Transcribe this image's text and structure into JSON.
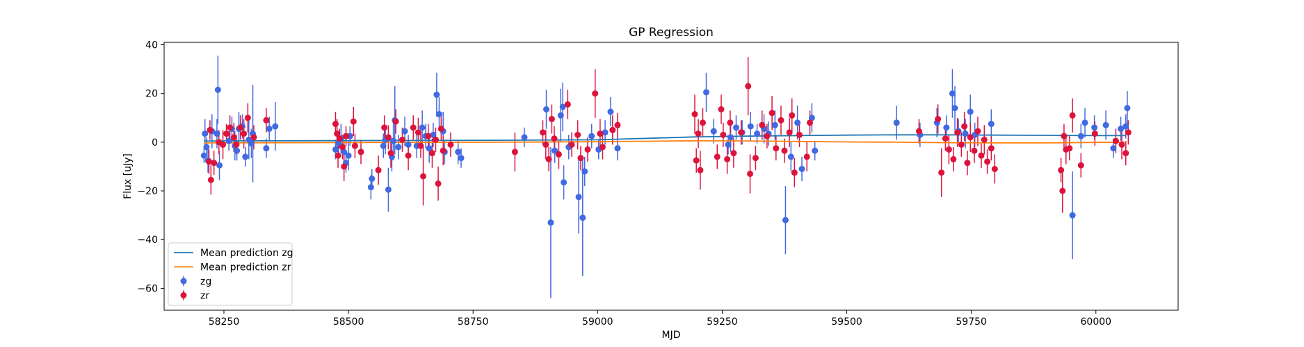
{
  "chart_data": {
    "type": "scatter",
    "title": "GP Regression",
    "xlabel": "MJD",
    "ylabel": "Flux [uJy]",
    "xlim": [
      58130,
      60165
    ],
    "ylim": [
      -69,
      41
    ],
    "xticks": [
      58250,
      58500,
      58750,
      59000,
      59250,
      59500,
      59750,
      60000
    ],
    "yticks": [
      -60,
      -40,
      -20,
      0,
      20,
      40
    ],
    "grid": false,
    "legend_position": "lower-left",
    "lines": [
      {
        "name": "Mean prediction zg",
        "color": "#1f77b4",
        "x": [
          58210,
          58400,
          58600,
          58800,
          59000,
          59100,
          59200,
          59300,
          59400,
          59500,
          59600,
          59700,
          59800,
          59900,
          60000,
          60060
        ],
        "y": [
          0.5,
          0.6,
          0.7,
          0.8,
          1.0,
          1.6,
          2.2,
          2.5,
          2.7,
          2.9,
          3.0,
          3.0,
          2.9,
          2.8,
          2.7,
          2.7
        ]
      },
      {
        "name": "Mean prediction zr",
        "color": "#ff7f0e",
        "x": [
          58210,
          58400,
          58600,
          58800,
          59000,
          59100,
          59200,
          59300,
          59400,
          59500,
          59600,
          59700,
          59800,
          59900,
          60000,
          60060
        ],
        "y": [
          -0.3,
          -0.2,
          -0.1,
          0.0,
          0.2,
          0.4,
          0.6,
          0.5,
          0.3,
          0.1,
          0.0,
          -0.2,
          -0.3,
          -0.3,
          -0.1,
          0.0
        ]
      }
    ],
    "series": [
      {
        "name": "zg",
        "color": "#4169e1",
        "points": [
          [
            58210,
            -5.5,
            3
          ],
          [
            58212,
            3.5,
            6
          ],
          [
            58215,
            -2,
            4
          ],
          [
            58218,
            -7.5,
            5
          ],
          [
            58226,
            4.5,
            7
          ],
          [
            58236,
            3.5,
            6
          ],
          [
            58238,
            21.5,
            14
          ],
          [
            58241,
            -9.5,
            6
          ],
          [
            58260,
            0.5,
            4
          ],
          [
            58266,
            5.5,
            5
          ],
          [
            58272,
            -1.5,
            6
          ],
          [
            58276,
            -3.5,
            4
          ],
          [
            58280,
            5.5,
            7
          ],
          [
            58287,
            6.5,
            5
          ],
          [
            58293,
            -6,
            4
          ],
          [
            58300,
            1,
            8
          ],
          [
            58305,
            -0.5,
            6
          ],
          [
            58308,
            3.5,
            20
          ],
          [
            58335,
            -2.5,
            4
          ],
          [
            58341,
            5.5,
            5
          ],
          [
            58353,
            6.5,
            10
          ],
          [
            58474,
            -3,
            4
          ],
          [
            58480,
            -0.5,
            5
          ],
          [
            58485,
            1.5,
            6
          ],
          [
            58491,
            -4,
            5
          ],
          [
            58495,
            -8.5,
            4
          ],
          [
            58500,
            -5.5,
            6
          ],
          [
            58503,
            2.5,
            4
          ],
          [
            58545,
            -18.5,
            5
          ],
          [
            58547,
            -15,
            4
          ],
          [
            58570,
            -1.5,
            5
          ],
          [
            58574,
            1,
            6
          ],
          [
            58580,
            -19.5,
            9
          ],
          [
            58587,
            -6,
            6
          ],
          [
            58590,
            0.5,
            8
          ],
          [
            58593,
            9,
            14
          ],
          [
            58600,
            -2,
            5
          ],
          [
            58613,
            4.5,
            6
          ],
          [
            58620,
            -1,
            4
          ],
          [
            58637,
            -1.5,
            5
          ],
          [
            58648,
            6,
            7
          ],
          [
            58655,
            2.5,
            5
          ],
          [
            58662,
            -2.5,
            6
          ],
          [
            58670,
            3,
            5
          ],
          [
            58677,
            19.5,
            9
          ],
          [
            58682,
            11.5,
            7
          ],
          [
            58690,
            4.5,
            8
          ],
          [
            58693,
            -4,
            5
          ],
          [
            58720,
            -4,
            5
          ],
          [
            58726,
            -6.5,
            4
          ],
          [
            58853,
            2,
            4
          ],
          [
            58897,
            13.5,
            8
          ],
          [
            58906,
            -33,
            31
          ],
          [
            58914,
            -3.5,
            5
          ],
          [
            58926,
            11,
            11
          ],
          [
            58930,
            14.5,
            10
          ],
          [
            58932,
            -16.5,
            7
          ],
          [
            58942,
            -2,
            5
          ],
          [
            58962,
            -22.5,
            15
          ],
          [
            58970,
            -31,
            24
          ],
          [
            58974,
            -12,
            6
          ],
          [
            58988,
            2.5,
            5
          ],
          [
            59002,
            -3,
            4
          ],
          [
            59015,
            4,
            5
          ],
          [
            59026,
            12.5,
            6
          ],
          [
            59040,
            -2.5,
            5
          ],
          [
            59218,
            20.5,
            8
          ],
          [
            59233,
            4.5,
            5
          ],
          [
            59262,
            -1,
            4
          ],
          [
            59267,
            2,
            6
          ],
          [
            59278,
            6,
            5
          ],
          [
            59290,
            4,
            5
          ],
          [
            59307,
            6.5,
            6
          ],
          [
            59320,
            3.5,
            4
          ],
          [
            59334,
            5.5,
            6
          ],
          [
            59343,
            3.5,
            5
          ],
          [
            59356,
            7,
            6
          ],
          [
            59377,
            -32,
            14
          ],
          [
            59388,
            -6,
            6
          ],
          [
            59401,
            8,
            7
          ],
          [
            59410,
            -11,
            5
          ],
          [
            59430,
            10,
            6
          ],
          [
            59436,
            -3.5,
            4
          ],
          [
            59600,
            8,
            7
          ],
          [
            59647,
            3,
            5
          ],
          [
            59681,
            8,
            6
          ],
          [
            59700,
            6,
            5
          ],
          [
            59712,
            20,
            10
          ],
          [
            59717,
            14,
            9
          ],
          [
            59724,
            4.5,
            5
          ],
          [
            59738,
            3.5,
            6
          ],
          [
            59748,
            12.5,
            7
          ],
          [
            59757,
            3,
            5
          ],
          [
            59790,
            7.5,
            6
          ],
          [
            59953,
            -30,
            18
          ],
          [
            59970,
            2.5,
            5
          ],
          [
            59978,
            8,
            6
          ],
          [
            59997,
            6,
            5
          ],
          [
            60020,
            7,
            6
          ],
          [
            60035,
            -2.5,
            4
          ],
          [
            60050,
            5.5,
            5
          ],
          [
            60060,
            6.5,
            5
          ],
          [
            60063,
            14,
            7
          ]
        ]
      },
      {
        "name": "zr",
        "color": "#dc143c",
        "points": [
          [
            58220,
            -8,
            5
          ],
          [
            58222,
            5,
            4
          ],
          [
            58224,
            -15.5,
            6
          ],
          [
            58230,
            -8.5,
            5
          ],
          [
            58240,
            0,
            5
          ],
          [
            58248,
            -1,
            6
          ],
          [
            58255,
            3.5,
            4
          ],
          [
            58262,
            6,
            5
          ],
          [
            58270,
            2,
            6
          ],
          [
            58275,
            -1,
            4
          ],
          [
            58283,
            6,
            5
          ],
          [
            58290,
            3.5,
            6
          ],
          [
            58298,
            10,
            6
          ],
          [
            58310,
            2,
            5
          ],
          [
            58335,
            9,
            5
          ],
          [
            58474,
            7.5,
            5
          ],
          [
            58477,
            3.5,
            6
          ],
          [
            58479,
            -5.5,
            5
          ],
          [
            58482,
            1.5,
            4
          ],
          [
            58488,
            -2,
            5
          ],
          [
            58491,
            -10,
            6
          ],
          [
            58495,
            2.5,
            4
          ],
          [
            58510,
            8.5,
            6
          ],
          [
            58513,
            -1.5,
            5
          ],
          [
            58525,
            -4,
            5
          ],
          [
            58560,
            -11.5,
            6
          ],
          [
            58572,
            6,
            5
          ],
          [
            58580,
            2,
            5
          ],
          [
            58585,
            -4.5,
            6
          ],
          [
            58595,
            8.5,
            5
          ],
          [
            58608,
            1,
            5
          ],
          [
            58620,
            -5.5,
            6
          ],
          [
            58630,
            6,
            5
          ],
          [
            58640,
            4,
            6
          ],
          [
            58645,
            -1.5,
            5
          ],
          [
            58650,
            -14,
            12
          ],
          [
            58660,
            2.5,
            5
          ],
          [
            58668,
            -4.5,
            6
          ],
          [
            58675,
            1,
            5
          ],
          [
            58680,
            -17,
            7
          ],
          [
            58686,
            5.5,
            5
          ],
          [
            58690,
            -3.5,
            6
          ],
          [
            58705,
            -1,
            5
          ],
          [
            58834,
            -4,
            8
          ],
          [
            58890,
            4,
            5
          ],
          [
            58896,
            -1,
            6
          ],
          [
            58902,
            -7,
            5
          ],
          [
            58908,
            9.5,
            6
          ],
          [
            58913,
            1.5,
            5
          ],
          [
            58922,
            -5,
            6
          ],
          [
            58940,
            15.5,
            6
          ],
          [
            58948,
            -1,
            5
          ],
          [
            58960,
            3,
            6
          ],
          [
            58966,
            -6.5,
            5
          ],
          [
            58980,
            -3,
            5
          ],
          [
            58995,
            20,
            10
          ],
          [
            59005,
            3.5,
            6
          ],
          [
            59010,
            -2,
            5
          ],
          [
            59030,
            5,
            6
          ],
          [
            59040,
            7,
            5
          ],
          [
            59195,
            11.5,
            8
          ],
          [
            59198,
            -7.5,
            5
          ],
          [
            59202,
            3.5,
            6
          ],
          [
            59206,
            -11.5,
            8
          ],
          [
            59211,
            8,
            6
          ],
          [
            59240,
            -6,
            5
          ],
          [
            59248,
            13.5,
            6
          ],
          [
            59252,
            3,
            5
          ],
          [
            59260,
            -7,
            6
          ],
          [
            59266,
            8,
            5
          ],
          [
            59273,
            -4.5,
            6
          ],
          [
            59288,
            4,
            5
          ],
          [
            59302,
            23,
            12
          ],
          [
            59306,
            -13,
            8
          ],
          [
            59317,
            -6.5,
            5
          ],
          [
            59330,
            7,
            6
          ],
          [
            59340,
            2.5,
            5
          ],
          [
            59350,
            12,
            7
          ],
          [
            59358,
            -2.5,
            5
          ],
          [
            59368,
            9,
            6
          ],
          [
            59375,
            -3.5,
            5
          ],
          [
            59385,
            4,
            6
          ],
          [
            59390,
            11,
            7
          ],
          [
            59395,
            -12.5,
            6
          ],
          [
            59405,
            3,
            5
          ],
          [
            59420,
            -6,
            6
          ],
          [
            59426,
            8,
            5
          ],
          [
            59645,
            4.5,
            5
          ],
          [
            59683,
            9.5,
            6
          ],
          [
            59690,
            -12.5,
            10
          ],
          [
            59698,
            1.5,
            5
          ],
          [
            59705,
            -3,
            6
          ],
          [
            59714,
            -7,
            5
          ],
          [
            59722,
            4,
            6
          ],
          [
            59730,
            -1,
            5
          ],
          [
            59736,
            6.5,
            6
          ],
          [
            59742,
            -8.5,
            5
          ],
          [
            59748,
            2,
            6
          ],
          [
            59756,
            -3.5,
            5
          ],
          [
            59763,
            4.5,
            6
          ],
          [
            59770,
            -5.5,
            5
          ],
          [
            59776,
            1,
            6
          ],
          [
            59782,
            -8,
            5
          ],
          [
            59790,
            -2.5,
            5
          ],
          [
            59797,
            -11,
            6
          ],
          [
            59930,
            -11.5,
            5
          ],
          [
            59933,
            -20,
            9
          ],
          [
            59936,
            2.5,
            5
          ],
          [
            59940,
            -3,
            6
          ],
          [
            59947,
            -2.5,
            5
          ],
          [
            59953,
            11,
            7
          ],
          [
            59970,
            -9.5,
            5
          ],
          [
            59998,
            3.5,
            5
          ],
          [
            60040,
            0.5,
            5
          ],
          [
            60052,
            -1,
            6
          ],
          [
            60060,
            -4.5,
            5
          ],
          [
            60065,
            4,
            5
          ]
        ]
      }
    ]
  }
}
